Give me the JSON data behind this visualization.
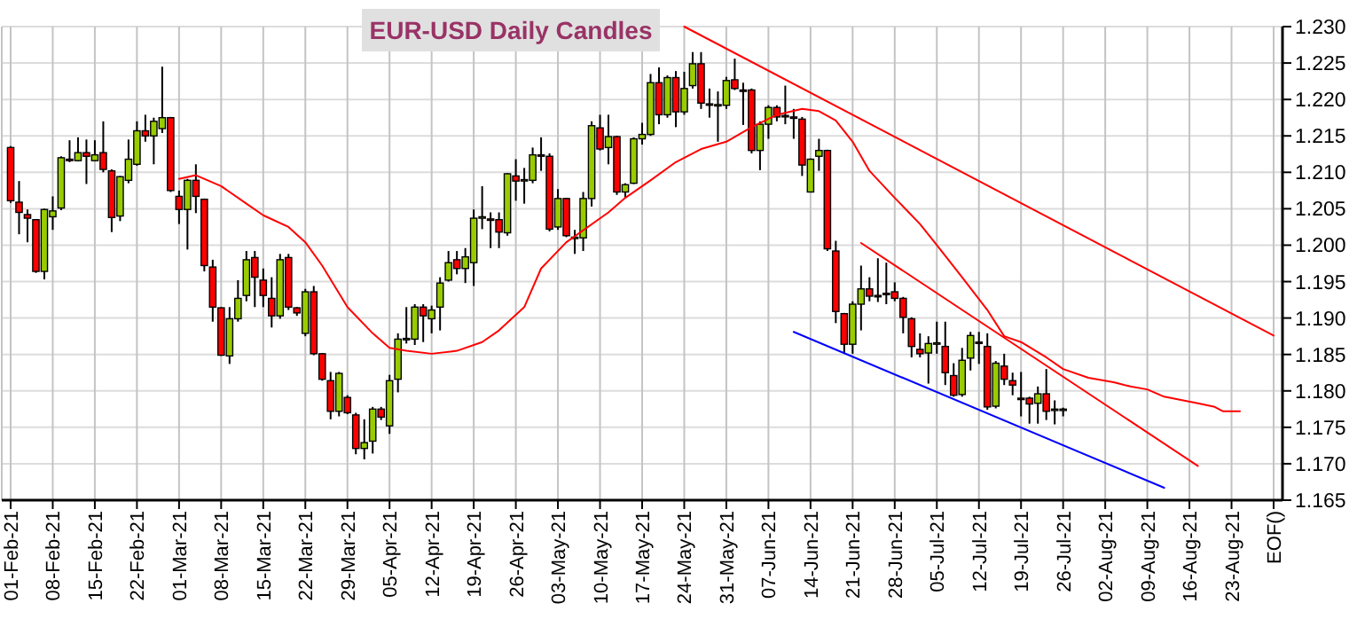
{
  "chart_data": {
    "type": "candlestick",
    "title": "EUR-USD Daily Candles",
    "categories": [
      "01-Feb-21",
      null,
      null,
      null,
      null,
      "08-Feb-21",
      null,
      null,
      null,
      null,
      "15-Feb-21",
      null,
      null,
      null,
      null,
      "22-Feb-21",
      null,
      null,
      null,
      null,
      "01-Mar-21",
      null,
      null,
      null,
      null,
      "08-Mar-21",
      null,
      null,
      null,
      null,
      "15-Mar-21",
      null,
      null,
      null,
      null,
      "22-Mar-21",
      null,
      null,
      null,
      null,
      "29-Mar-21",
      null,
      null,
      null,
      null,
      "05-Apr-21",
      null,
      null,
      null,
      null,
      "12-Apr-21",
      null,
      null,
      null,
      null,
      "19-Apr-21",
      null,
      null,
      null,
      null,
      "26-Apr-21",
      null,
      null,
      null,
      null,
      "03-May-21",
      null,
      null,
      null,
      null,
      "10-May-21",
      null,
      null,
      null,
      null,
      "17-May-21",
      null,
      null,
      null,
      null,
      "24-May-21",
      null,
      null,
      null,
      null,
      "31-May-21",
      null,
      null,
      null,
      null,
      "07-Jun-21",
      null,
      null,
      null,
      null,
      "14-Jun-21",
      null,
      null,
      null,
      null,
      "21-Jun-21",
      null,
      null,
      null,
      null,
      "28-Jun-21",
      null,
      null,
      null,
      null,
      "05-Jul-21",
      null,
      null,
      null,
      null,
      "12-Jul-21",
      null,
      null,
      null,
      null,
      "19-Jul-21",
      null,
      null,
      null,
      null,
      "26-Jul-21",
      null,
      null,
      null,
      null,
      "02-Aug-21",
      null,
      null,
      null,
      null,
      "09-Aug-21",
      null,
      null,
      null,
      null,
      "16-Aug-21",
      null,
      null,
      null,
      null,
      "23-Aug-21",
      null,
      null,
      null,
      null,
      "EOF()"
    ],
    "ohlc": [
      [
        1.2134,
        1.2136,
        1.2058,
        1.2061
      ],
      [
        1.2059,
        1.2088,
        1.2015,
        1.2045
      ],
      [
        1.2042,
        1.2049,
        1.2004,
        1.2037
      ],
      [
        1.2035,
        1.2035,
        1.1962,
        1.1964
      ],
      [
        1.1964,
        1.205,
        1.1953,
        1.2049
      ],
      [
        1.2039,
        1.2067,
        1.2021,
        1.2047
      ],
      [
        1.2051,
        1.2122,
        1.2048,
        1.212
      ],
      [
        1.2118,
        1.2144,
        1.2114,
        1.2117
      ],
      [
        1.2116,
        1.2148,
        1.2115,
        1.2127
      ],
      [
        1.2127,
        1.2145,
        1.2084,
        1.2122
      ],
      [
        1.2116,
        1.2144,
        1.2115,
        1.2124
      ],
      [
        1.2127,
        1.217,
        1.21,
        1.2104
      ],
      [
        1.2102,
        1.2104,
        1.2018,
        1.2038
      ],
      [
        1.204,
        1.2095,
        1.2033,
        1.2094
      ],
      [
        1.2089,
        1.2145,
        1.2085,
        1.2118
      ],
      [
        1.2111,
        1.217,
        1.2109,
        1.2157
      ],
      [
        1.2157,
        1.2179,
        1.2142,
        1.215
      ],
      [
        1.215,
        1.2175,
        1.2111,
        1.217
      ],
      [
        1.216,
        1.2245,
        1.2154,
        1.2175
      ],
      [
        1.2175,
        1.2176,
        1.2073,
        1.2075
      ],
      [
        1.2067,
        1.2075,
        1.2029,
        1.2049
      ],
      [
        1.2049,
        1.2091,
        1.1994,
        1.2089
      ],
      [
        1.2089,
        1.2111,
        1.2044,
        1.2067
      ],
      [
        1.2063,
        1.2064,
        1.1964,
        1.1972
      ],
      [
        1.197,
        1.198,
        1.1895,
        1.1915
      ],
      [
        1.1914,
        1.1915,
        1.1848,
        1.1849
      ],
      [
        1.1848,
        1.1915,
        1.1837,
        1.1899
      ],
      [
        1.1899,
        1.1952,
        1.1895,
        1.1927
      ],
      [
        1.1931,
        1.1992,
        1.1923,
        1.198
      ],
      [
        1.1983,
        1.1992,
        1.1915,
        1.1956
      ],
      [
        1.1952,
        1.1968,
        1.1915,
        1.1931
      ],
      [
        1.1927,
        1.1956,
        1.1887,
        1.1903
      ],
      [
        1.1903,
        1.1988,
        1.1899,
        1.198
      ],
      [
        1.1983,
        1.1988,
        1.1911,
        1.1915
      ],
      [
        1.1914,
        1.1915,
        1.1903,
        1.1907
      ],
      [
        1.1879,
        1.194,
        1.1875,
        1.1936
      ],
      [
        1.1936,
        1.1944,
        1.1849,
        1.1851
      ],
      [
        1.1851,
        1.1852,
        1.1814,
        1.1816
      ],
      [
        1.1814,
        1.1826,
        1.1761,
        1.1772
      ],
      [
        1.1772,
        1.1826,
        1.1765,
        1.1824
      ],
      [
        1.1791,
        1.1794,
        1.1768,
        1.177
      ],
      [
        1.1767,
        1.177,
        1.1713,
        1.1721
      ],
      [
        1.1721,
        1.1761,
        1.1706,
        1.1729
      ],
      [
        1.1731,
        1.1778,
        1.1714,
        1.1775
      ],
      [
        1.1775,
        1.1778,
        1.176,
        1.1764
      ],
      [
        1.1752,
        1.1822,
        1.1741,
        1.1814
      ],
      [
        1.1816,
        1.1879,
        1.1798,
        1.1871
      ],
      [
        1.1871,
        1.1915,
        1.1865,
        1.1872
      ],
      [
        1.1871,
        1.1919,
        1.1863,
        1.1915
      ],
      [
        1.1915,
        1.1919,
        1.1867,
        1.1903
      ],
      [
        1.1899,
        1.1917,
        1.1879,
        1.1911
      ],
      [
        1.1915,
        1.1956,
        1.1883,
        1.1948
      ],
      [
        1.1952,
        1.1992,
        1.195,
        1.1976
      ],
      [
        1.198,
        1.1992,
        1.196,
        1.1968
      ],
      [
        1.1968,
        1.1996,
        1.1948,
        1.1984
      ],
      [
        1.1976,
        1.2049,
        1.1944,
        1.2037
      ],
      [
        1.2037,
        1.2081,
        1.2022,
        1.2039
      ],
      [
        1.2036,
        1.2045,
        1.1996,
        1.2035
      ],
      [
        1.2035,
        1.2045,
        1.1996,
        1.2018
      ],
      [
        1.2017,
        1.2099,
        1.2013,
        1.2098
      ],
      [
        1.2095,
        1.2118,
        1.2061,
        1.2088
      ],
      [
        1.2089,
        1.2106,
        1.2057,
        1.209
      ],
      [
        1.2089,
        1.2134,
        1.2085,
        1.2124
      ],
      [
        1.2124,
        1.2148,
        1.2102,
        1.2123
      ],
      [
        1.2122,
        1.2126,
        1.2019,
        1.2022
      ],
      [
        1.2025,
        1.2077,
        1.2021,
        1.2064
      ],
      [
        1.2064,
        1.2065,
        1.2011,
        1.2013
      ],
      [
        1.201,
        1.2021,
        1.1988,
        1.2011
      ],
      [
        1.201,
        1.2073,
        1.1992,
        1.2064
      ],
      [
        1.2064,
        1.217,
        1.2053,
        1.2164
      ],
      [
        1.2161,
        1.2179,
        1.213,
        1.2132
      ],
      [
        1.2134,
        1.2179,
        1.2111,
        1.2149
      ],
      [
        1.2149,
        1.215,
        1.2069,
        1.2073
      ],
      [
        1.2073,
        1.2085,
        1.2065,
        1.2083
      ],
      [
        1.2085,
        1.2148,
        1.2084,
        1.2146
      ],
      [
        1.2146,
        1.2168,
        1.2138,
        1.2152
      ],
      [
        1.2152,
        1.2235,
        1.215,
        1.2223
      ],
      [
        1.2223,
        1.2244,
        1.2166,
        1.2179
      ],
      [
        1.2179,
        1.2233,
        1.2175,
        1.223
      ],
      [
        1.223,
        1.2239,
        1.2162,
        1.2183
      ],
      [
        1.2183,
        1.2238,
        1.2179,
        1.2215
      ],
      [
        1.2219,
        1.2265,
        1.2215,
        1.2249
      ],
      [
        1.2249,
        1.2265,
        1.2187,
        1.2195
      ],
      [
        1.2194,
        1.2215,
        1.2175,
        1.2193
      ],
      [
        1.2192,
        1.2211,
        1.2142,
        1.2193
      ],
      [
        1.2192,
        1.2231,
        1.2187,
        1.2226
      ],
      [
        1.2227,
        1.2256,
        1.2213,
        1.2215
      ],
      [
        1.2213,
        1.2223,
        1.2165,
        1.2212
      ],
      [
        1.2213,
        1.2215,
        1.2126,
        1.213
      ],
      [
        1.213,
        1.217,
        1.2103,
        1.2166
      ],
      [
        1.2166,
        1.2192,
        1.2146,
        1.2189
      ],
      [
        1.2189,
        1.2192,
        1.217,
        1.2176
      ],
      [
        1.2178,
        1.2219,
        1.2166,
        1.2177
      ],
      [
        1.2176,
        1.2187,
        1.2146,
        1.2175
      ],
      [
        1.2173,
        1.2176,
        1.2095,
        1.211
      ],
      [
        1.2073,
        1.2119,
        1.2073,
        1.2118
      ],
      [
        1.2122,
        1.2146,
        1.2102,
        1.213
      ],
      [
        1.213,
        1.2131,
        1.1992,
        1.1995
      ],
      [
        1.1992,
        1.2006,
        1.1893,
        1.1909
      ],
      [
        1.1906,
        1.1907,
        1.1851,
        1.1864
      ],
      [
        1.1864,
        1.1923,
        1.1851,
        1.1919
      ],
      [
        1.1919,
        1.1972,
        1.1883,
        1.194
      ],
      [
        1.194,
        1.1956,
        1.1923,
        1.193
      ],
      [
        1.1931,
        1.1982,
        1.1922,
        1.193
      ],
      [
        1.1934,
        1.1976,
        1.1919,
        1.1933
      ],
      [
        1.1936,
        1.1949,
        1.1923,
        1.1927
      ],
      [
        1.1927,
        1.1929,
        1.1879,
        1.1901
      ],
      [
        1.1899,
        1.1901,
        1.1846,
        1.1861
      ],
      [
        1.1857,
        1.1879,
        1.1846,
        1.1851
      ],
      [
        1.1852,
        1.1875,
        1.181,
        1.1865
      ],
      [
        1.1865,
        1.1895,
        1.1851,
        1.1866
      ],
      [
        1.1861,
        1.1895,
        1.1808,
        1.1825
      ],
      [
        1.1821,
        1.1838,
        1.1792,
        1.1794
      ],
      [
        1.1795,
        1.1859,
        1.1792,
        1.1842
      ],
      [
        1.1845,
        1.1881,
        1.1828,
        1.1876
      ],
      [
        1.1867,
        1.1881,
        1.1837,
        1.1866
      ],
      [
        1.1861,
        1.1879,
        1.1774,
        1.1778
      ],
      [
        1.1779,
        1.1841,
        1.1776,
        1.1838
      ],
      [
        1.1834,
        1.1851,
        1.1808,
        1.1816
      ],
      [
        1.1814,
        1.1825,
        1.1794,
        1.1808
      ],
      [
        1.179,
        1.1826,
        1.1765,
        1.1789
      ],
      [
        1.179,
        1.1792,
        1.1755,
        1.1782
      ],
      [
        1.1783,
        1.1806,
        1.1755,
        1.1796
      ],
      [
        1.1796,
        1.183,
        1.176,
        1.1772
      ],
      [
        1.1774,
        1.1787,
        1.1754,
        1.1775
      ],
      [
        1.1774,
        1.1777,
        1.1765,
        1.1775
      ],
      null,
      null,
      null,
      null,
      null,
      null,
      null,
      null,
      null,
      null,
      null,
      null,
      null,
      null,
      null,
      null,
      null,
      null,
      null,
      null,
      null,
      null,
      null,
      null,
      null
    ],
    "colors": [
      "#ff0000",
      "#ff0000",
      "#ff0000",
      "#ff0000",
      "#99cc00",
      "#99cc00",
      "#99cc00",
      "#ff0000",
      "#99cc00",
      "#ff0000",
      "#99cc00",
      "#ff0000",
      "#ff0000",
      "#99cc00",
      "#99cc00",
      "#99cc00",
      "#ff0000",
      "#99cc00",
      "#99cc00",
      "#ff0000",
      "#ff0000",
      "#99cc00",
      "#ff0000",
      "#ff0000",
      "#ff0000",
      "#ff0000",
      "#99cc00",
      "#99cc00",
      "#99cc00",
      "#ff0000",
      "#ff0000",
      "#ff0000",
      "#99cc00",
      "#ff0000",
      "#ff0000",
      "#99cc00",
      "#ff0000",
      "#ff0000",
      "#ff0000",
      "#99cc00",
      "#ff0000",
      "#ff0000",
      "#99cc00",
      "#99cc00",
      "#ff0000",
      "#99cc00",
      "#99cc00",
      "#99cc00",
      "#99cc00",
      "#ff0000",
      "#99cc00",
      "#99cc00",
      "#99cc00",
      "#ff0000",
      "#99cc00",
      "#99cc00",
      "#99cc00",
      "#ff0000",
      "#ff0000",
      "#99cc00",
      "#ff0000",
      "#99cc00",
      "#99cc00",
      "#ff0000",
      "#ff0000",
      "#99cc00",
      "#ff0000",
      "#99cc00",
      "#99cc00",
      "#99cc00",
      "#ff0000",
      "#99cc00",
      "#ff0000",
      "#99cc00",
      "#99cc00",
      "#99cc00",
      "#99cc00",
      "#ff0000",
      "#99cc00",
      "#ff0000",
      "#99cc00",
      "#99cc00",
      "#ff0000",
      "#ff0000",
      "#99cc00",
      "#99cc00",
      "#ff0000",
      "#ff0000",
      "#ff0000",
      "#99cc00",
      "#99cc00",
      "#ff0000",
      "#ff0000",
      "#ff0000",
      "#ff0000",
      "#99cc00",
      "#99cc00",
      "#ff0000",
      "#ff0000",
      "#ff0000",
      "#99cc00",
      "#99cc00",
      "#ff0000",
      "#ff0000",
      "#ff0000",
      "#ff0000",
      "#ff0000",
      "#ff0000",
      "#ff0000",
      "#99cc00",
      "#99cc00",
      "#ff0000",
      "#ff0000",
      "#99cc00",
      "#99cc00",
      "#ff0000",
      "#ff0000",
      "#99cc00",
      "#ff0000",
      "#ff0000",
      "#ff0000",
      "#ff0000",
      "#99cc00",
      "#ff0000",
      "#99cc00",
      "#99cc00",
      null,
      null,
      null,
      null,
      null,
      null,
      null,
      null,
      null,
      null,
      null,
      null,
      null,
      null,
      null,
      null,
      null,
      null,
      null,
      null,
      null,
      null,
      null,
      null,
      null
    ],
    "series": [
      {
        "type": "line",
        "color": "#ff0000",
        "values": [
          null,
          null,
          null,
          null,
          null,
          null,
          null,
          null,
          null,
          null,
          null,
          null,
          null,
          null,
          null,
          null,
          null,
          null,
          null,
          null,
          1.2091,
          null,
          1.2096,
          null,
          null,
          1.2081,
          null,
          null,
          1.2057,
          null,
          1.2041,
          null,
          null,
          1.2025,
          null,
          1.2004,
          null,
          1.1972,
          null,
          null,
          1.1915,
          null,
          null,
          1.1879,
          null,
          1.1859,
          null,
          1.1855,
          null,
          null,
          1.1851,
          null,
          null,
          1.1855,
          null,
          null,
          1.1867,
          null,
          1.1883,
          null,
          null,
          1.1915,
          null,
          1.1968,
          null,
          null,
          1.2004,
          null,
          null,
          null,
          null,
          1.2045,
          null,
          1.2065,
          null,
          null,
          1.2089,
          null,
          null,
          1.2114,
          null,
          null,
          1.2132,
          null,
          null,
          1.2142,
          null,
          null,
          1.2162,
          null,
          null,
          1.2179,
          null,
          null,
          1.2187,
          null,
          1.2184,
          null,
          1.2171,
          null,
          1.2142,
          null,
          1.2102,
          null,
          null,
          1.2065,
          null,
          null,
          1.2029,
          null,
          1.2,
          null,
          null,
          1.1956,
          null,
          null,
          1.1911,
          null,
          1.1875,
          null,
          1.1867,
          null,
          null,
          1.1846,
          null,
          1.183,
          null,
          null,
          1.1818,
          null,
          null,
          1.1812,
          null,
          1.1806,
          null,
          1.1802,
          null,
          1.1792,
          null,
          null,
          null,
          1.1783,
          null,
          1.1778,
          1.1772,
          null,
          1.1772,
          null,
          null,
          null,
          null
        ]
      },
      {
        "type": "line",
        "color": "#ff0000",
        "values": [
          null,
          null,
          null,
          null,
          null,
          null,
          null,
          null,
          null,
          null,
          null,
          null,
          null,
          null,
          null,
          null,
          null,
          null,
          null,
          null,
          null,
          null,
          null,
          null,
          null,
          null,
          null,
          null,
          null,
          null,
          null,
          null,
          null,
          null,
          null,
          null,
          null,
          null,
          null,
          null,
          null,
          null,
          null,
          null,
          null,
          null,
          null,
          null,
          null,
          null,
          null,
          null,
          null,
          null,
          null,
          null,
          null,
          null,
          null,
          null,
          null,
          null,
          null,
          null,
          null,
          null,
          null,
          null,
          null,
          null,
          null,
          null,
          null,
          null,
          null,
          null,
          null,
          null,
          null,
          null,
          1.23,
          null,
          null,
          null,
          null,
          null,
          null,
          null,
          null,
          null,
          null,
          null,
          null,
          null,
          null,
          null,
          null,
          null,
          null,
          null,
          null,
          null,
          null,
          null,
          null,
          null,
          null,
          null,
          null,
          null,
          null,
          null,
          null,
          null,
          null,
          null,
          null,
          null,
          null,
          null,
          null,
          null,
          null,
          null,
          null,
          null,
          null,
          null,
          null,
          null,
          null,
          null,
          null,
          null,
          null,
          null,
          null,
          null,
          null,
          null,
          null,
          null,
          null,
          null,
          null,
          null,
          null,
          null,
          null,
          null,
          1.1876
        ]
      },
      {
        "type": "line",
        "color": "#ff0000",
        "values": [
          null,
          null,
          null,
          null,
          null,
          null,
          null,
          null,
          null,
          null,
          null,
          null,
          null,
          null,
          null,
          null,
          null,
          null,
          null,
          null,
          null,
          null,
          null,
          null,
          null,
          null,
          null,
          null,
          null,
          null,
          null,
          null,
          null,
          null,
          null,
          null,
          null,
          null,
          null,
          null,
          null,
          null,
          null,
          null,
          null,
          null,
          null,
          null,
          null,
          null,
          null,
          null,
          null,
          null,
          null,
          null,
          null,
          null,
          null,
          null,
          null,
          null,
          null,
          null,
          null,
          null,
          null,
          null,
          null,
          null,
          null,
          null,
          null,
          null,
          null,
          null,
          null,
          null,
          null,
          null,
          null,
          null,
          null,
          null,
          null,
          null,
          null,
          null,
          null,
          null,
          null,
          null,
          null,
          null,
          null,
          null,
          null,
          null,
          null,
          null,
          null,
          1.2003,
          null,
          null,
          null,
          null,
          null,
          null,
          null,
          null,
          null,
          null,
          null,
          null,
          null,
          null,
          null,
          null,
          null,
          null,
          null,
          null,
          null,
          null,
          null,
          null,
          null,
          null,
          null,
          null,
          null,
          null,
          null,
          null,
          null,
          null,
          null,
          null,
          null,
          null,
          null,
          1.1697,
          null,
          null,
          null,
          null,
          null,
          null,
          null,
          null,
          null
        ]
      },
      {
        "type": "line",
        "color": "#0000ff",
        "values": [
          null,
          null,
          null,
          null,
          null,
          null,
          null,
          null,
          null,
          null,
          null,
          null,
          null,
          null,
          null,
          null,
          null,
          null,
          null,
          null,
          null,
          null,
          null,
          null,
          null,
          null,
          null,
          null,
          null,
          null,
          null,
          null,
          null,
          null,
          null,
          null,
          null,
          null,
          null,
          null,
          null,
          null,
          null,
          null,
          null,
          null,
          null,
          null,
          null,
          null,
          null,
          null,
          null,
          null,
          null,
          null,
          null,
          null,
          null,
          null,
          null,
          null,
          null,
          null,
          null,
          null,
          null,
          null,
          null,
          null,
          null,
          null,
          null,
          null,
          null,
          null,
          null,
          null,
          null,
          null,
          null,
          null,
          null,
          null,
          null,
          null,
          null,
          null,
          null,
          null,
          null,
          null,
          null,
          1.1881,
          null,
          null,
          null,
          null,
          null,
          null,
          null,
          null,
          null,
          null,
          null,
          null,
          null,
          null,
          null,
          null,
          null,
          null,
          null,
          null,
          null,
          null,
          null,
          null,
          null,
          null,
          null,
          null,
          null,
          null,
          null,
          null,
          null,
          null,
          null,
          null,
          null,
          null,
          null,
          null,
          null,
          null,
          null,
          1.1667,
          null,
          null,
          null,
          null,
          null,
          null,
          null,
          null,
          null,
          null,
          null,
          null,
          null
        ]
      }
    ],
    "ylim": [
      1.165,
      1.23
    ],
    "yticks": [
      {
        "value": 1.165,
        "label": "1.165"
      },
      {
        "value": 1.17,
        "label": "1.170"
      },
      {
        "value": 1.175,
        "label": "1.175"
      },
      {
        "value": 1.18,
        "label": "1.180"
      },
      {
        "value": 1.185,
        "label": "1.185"
      },
      {
        "value": 1.19,
        "label": "1.190"
      },
      {
        "value": 1.195,
        "label": "1.195"
      },
      {
        "value": 1.2,
        "label": "1.200"
      },
      {
        "value": 1.205,
        "label": "1.205"
      },
      {
        "value": 1.21,
        "label": "1.210"
      },
      {
        "value": 1.215,
        "label": "1.215"
      },
      {
        "value": 1.22,
        "label": "1.220"
      },
      {
        "value": 1.225,
        "label": "1.225"
      },
      {
        "value": 1.23,
        "label": "1.230"
      }
    ],
    "grid": true
  }
}
